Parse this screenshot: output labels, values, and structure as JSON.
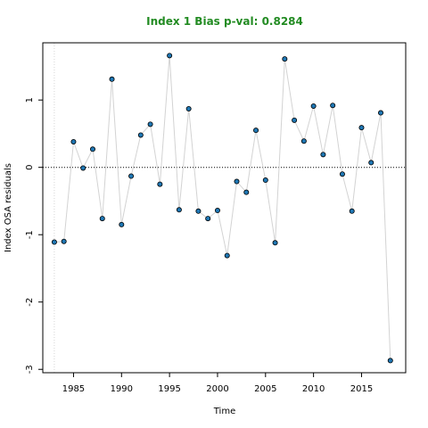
{
  "chart_data": {
    "type": "scatter",
    "title": "Index 1 Bias p-val: 0.8284",
    "xlabel": "Time",
    "ylabel": "Index OSA residuals",
    "xlim": [
      1981.8,
      2019.6
    ],
    "ylim": [
      -3.05,
      1.85
    ],
    "x_ticks": [
      1985,
      1990,
      1995,
      2000,
      2005,
      2010,
      2015
    ],
    "y_ticks": [
      -3,
      -2,
      -1,
      0,
      1
    ],
    "zero_line": 0,
    "vertical_reference_x": 1983,
    "colors": {
      "point": "#1f77b4",
      "line": "#d3d3d3",
      "title": "#228b22"
    },
    "x": [
      1983,
      1984,
      1985,
      1986,
      1987,
      1988,
      1989,
      1990,
      1991,
      1992,
      1993,
      1994,
      1995,
      1996,
      1997,
      1998,
      1999,
      2000,
      2001,
      2002,
      2003,
      2004,
      2005,
      2006,
      2007,
      2008,
      2009,
      2010,
      2011,
      2012,
      2013,
      2014,
      2015,
      2016,
      2017,
      2018
    ],
    "y": [
      -1.11,
      -1.1,
      0.38,
      -0.01,
      0.27,
      -0.76,
      1.31,
      -0.85,
      -0.13,
      0.48,
      0.64,
      -0.25,
      1.66,
      -0.63,
      0.87,
      -0.65,
      -0.76,
      -0.64,
      -1.31,
      -0.21,
      -0.37,
      0.55,
      -0.19,
      -1.12,
      1.61,
      0.7,
      0.39,
      0.91,
      0.19,
      0.92,
      -0.1,
      -0.65,
      0.59,
      0.07,
      0.81,
      -2.87
    ]
  }
}
